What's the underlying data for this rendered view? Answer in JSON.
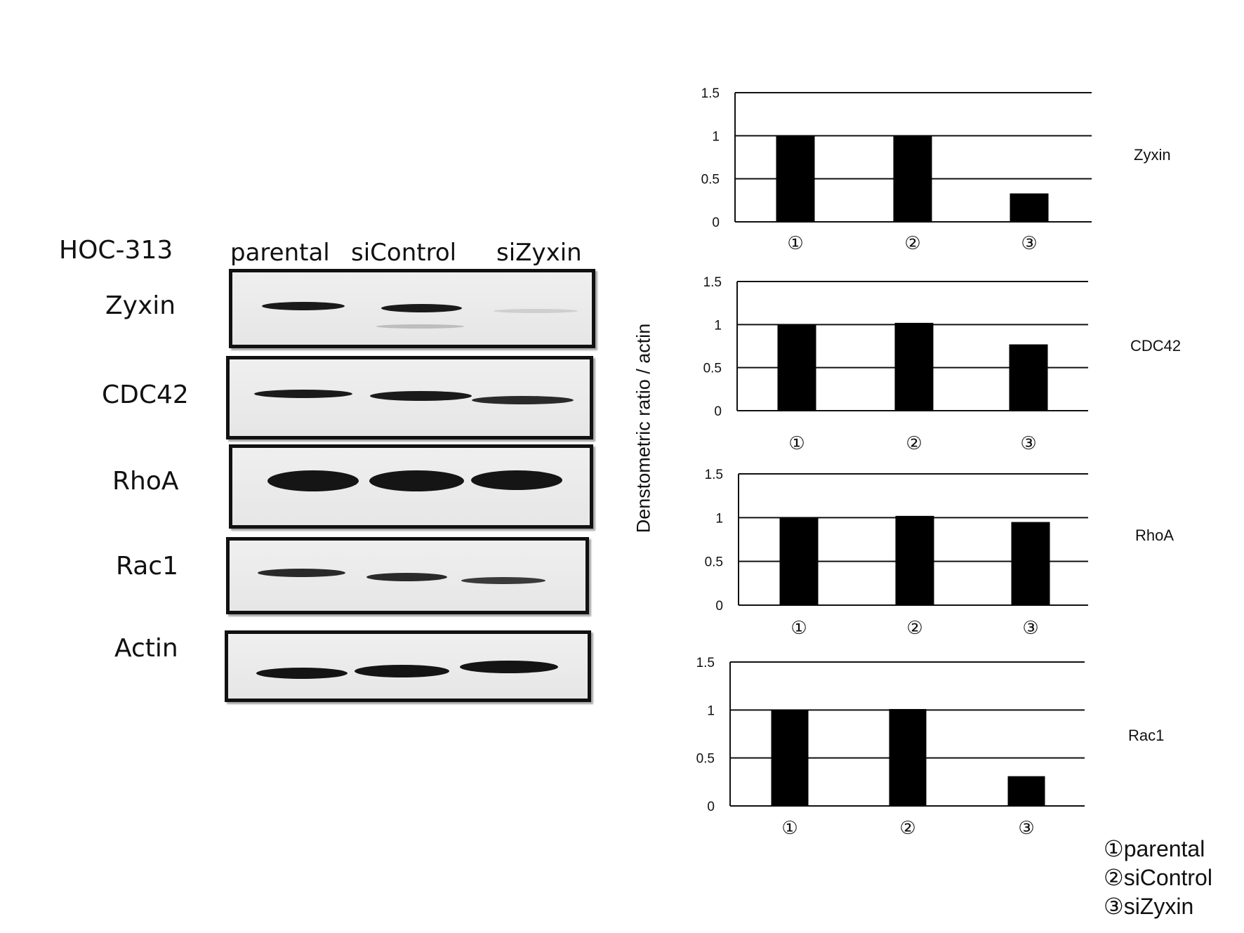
{
  "blot": {
    "cell_line": "HOC-313",
    "lanes": [
      "parental",
      "siControl",
      "siZyxin"
    ],
    "rows": [
      "Zyxin",
      "CDC42",
      "RhoA",
      "Rac1",
      "Actin"
    ]
  },
  "y_axis_label": "Denstometric ratio / actin",
  "legend": [
    "①parental",
    "②siControl",
    "③siZyxin"
  ],
  "chart_data": [
    {
      "type": "bar",
      "title": "Zyxin",
      "categories": [
        "①",
        "②",
        "③"
      ],
      "values": [
        1.0,
        1.0,
        0.33
      ],
      "ylim": [
        0,
        1.5
      ],
      "yticks": [
        "0",
        "0.5",
        "1",
        "1.5"
      ],
      "grid": true
    },
    {
      "type": "bar",
      "title": "CDC42",
      "categories": [
        "①",
        "②",
        "③"
      ],
      "values": [
        1.0,
        1.02,
        0.77
      ],
      "ylim": [
        0,
        1.5
      ],
      "yticks": [
        "0",
        "0.5",
        "1",
        "1.5"
      ],
      "grid": true
    },
    {
      "type": "bar",
      "title": "RhoA",
      "categories": [
        "①",
        "②",
        "③"
      ],
      "values": [
        1.0,
        1.02,
        0.95
      ],
      "ylim": [
        0,
        1.5
      ],
      "yticks": [
        "0",
        "0.5",
        "1",
        "1.5"
      ],
      "grid": true
    },
    {
      "type": "bar",
      "title": "Rac1",
      "categories": [
        "①",
        "②",
        "③"
      ],
      "values": [
        1.0,
        1.01,
        0.31
      ],
      "ylim": [
        0,
        1.5
      ],
      "yticks": [
        "0",
        "0.5",
        "1",
        "1.5"
      ],
      "grid": true
    }
  ]
}
